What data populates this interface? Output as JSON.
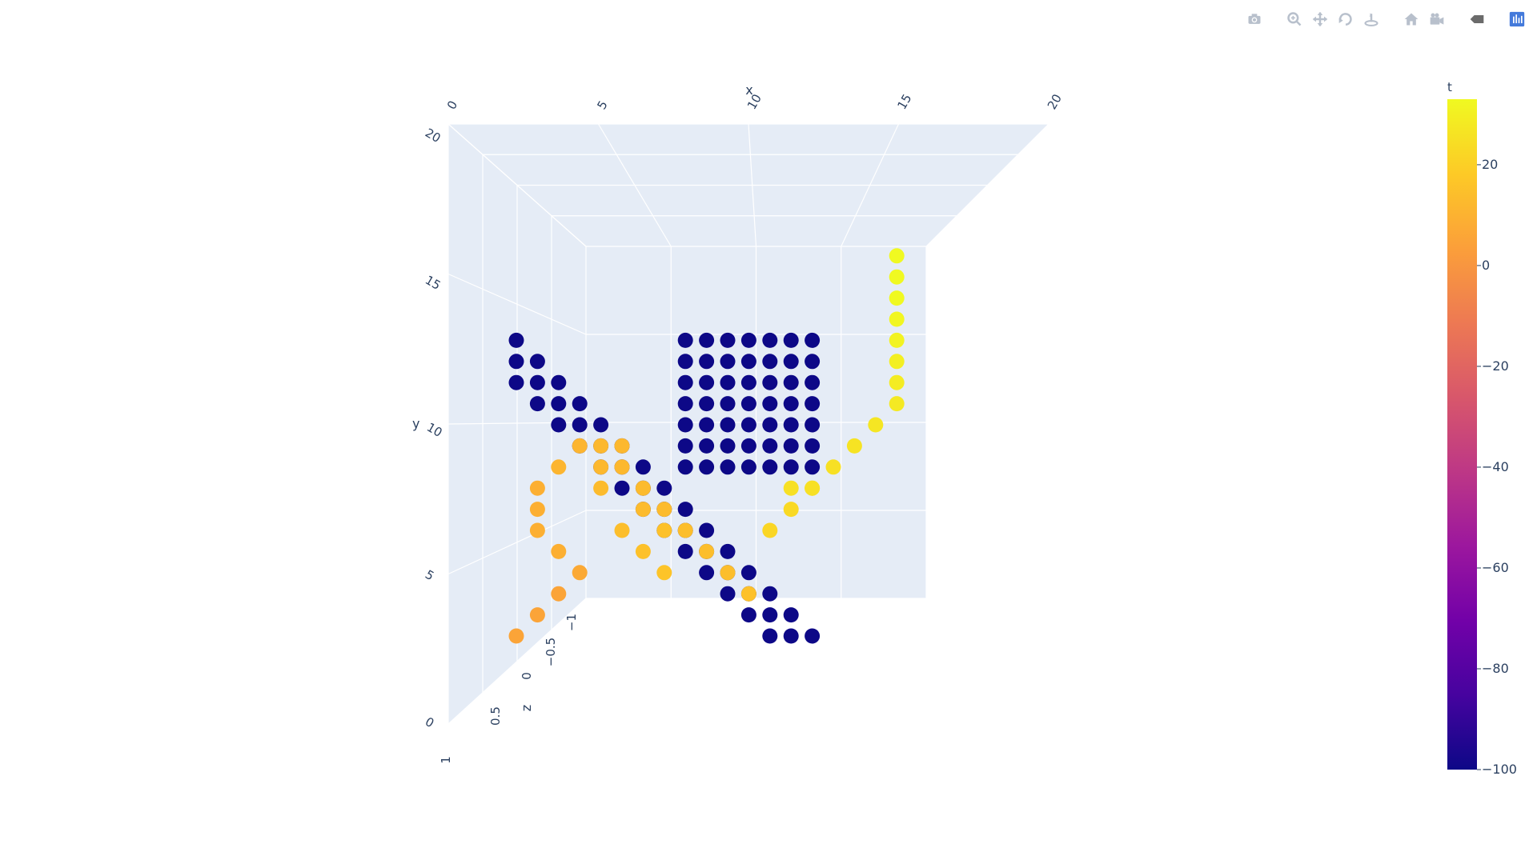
{
  "toolbar": {
    "buttons": [
      {
        "name": "download-plot-icon",
        "title": "Download plot as a png"
      },
      {
        "name": "zoom-icon",
        "title": "Zoom"
      },
      {
        "name": "pan-icon",
        "title": "Pan"
      },
      {
        "name": "orbital-rotation-icon",
        "title": "Orbital rotation"
      },
      {
        "name": "turntable-rotation-icon",
        "title": "Turntable rotation"
      },
      {
        "name": "reset-camera-default-icon",
        "title": "Reset camera to default"
      },
      {
        "name": "reset-camera-last-save-icon",
        "title": "Reset camera to last save"
      },
      {
        "name": "toggle-hover-icon",
        "title": "Toggle show closest data on hover"
      },
      {
        "name": "plotly-logo-icon",
        "title": "Produced with Plotly"
      }
    ]
  },
  "chart_data": {
    "type": "scatter",
    "mode": "3d-markers",
    "xlabel": "x",
    "ylabel": "y",
    "zlabel": "z",
    "xlim": [
      0,
      20
    ],
    "ylim": [
      0,
      20
    ],
    "zlim": [
      -1,
      1
    ],
    "x_ticks": [
      "0",
      "5",
      "10",
      "15",
      "20"
    ],
    "y_ticks": [
      "0",
      "5",
      "10",
      "15",
      "20"
    ],
    "z_ticks": [
      "−1",
      "−0.5",
      "0",
      "0.5",
      "1"
    ],
    "grid": true,
    "colorbar": {
      "title": "t",
      "range": [
        -100,
        33
      ],
      "ticks": [
        "20",
        "0",
        "−20",
        "−40",
        "−60",
        "−80",
        "−100"
      ],
      "tick_values": [
        20,
        0,
        -20,
        -40,
        -60,
        -80,
        -100
      ],
      "colorscale": [
        "#0d0887",
        "#46039f",
        "#7201a8",
        "#9c179e",
        "#bd3786",
        "#d8576b",
        "#ed7953",
        "#fb9f3a",
        "#fdca26",
        "#f0f921"
      ]
    },
    "series": [
      {
        "x": [
          3,
          3,
          4,
          3,
          4,
          5,
          4,
          5,
          6,
          5,
          6,
          7,
          6,
          7,
          8,
          7,
          8,
          9,
          8,
          9,
          10,
          9,
          10,
          11,
          10,
          11,
          12,
          11,
          12,
          13,
          12,
          13,
          14,
          13,
          14,
          15,
          14,
          15,
          16,
          15,
          16,
          17
        ],
        "y": [
          14,
          13,
          13,
          12,
          12,
          12,
          11,
          11,
          11,
          10,
          10,
          10,
          9,
          9,
          9,
          8,
          8,
          8,
          7,
          7,
          7,
          6,
          6,
          6,
          5,
          5,
          5,
          4,
          4,
          4,
          3,
          3,
          3,
          2,
          2,
          2,
          1,
          1,
          1,
          0,
          0,
          0
        ],
        "z": [
          0,
          0,
          0,
          0,
          0,
          0,
          0,
          0,
          0,
          0,
          0,
          0,
          0,
          0,
          0,
          0,
          0,
          0,
          0,
          0,
          0,
          0,
          0,
          0,
          0,
          0,
          0,
          0,
          0,
          0,
          0,
          0,
          0,
          0,
          0,
          0,
          0,
          0,
          0,
          0,
          0,
          0
        ],
        "t": [
          -100,
          -100,
          -100,
          -100,
          -100,
          -100,
          -100,
          -100,
          -100,
          -100,
          -100,
          -100,
          -100,
          -100,
          -100,
          -100,
          -100,
          -100,
          -100,
          -100,
          -100,
          -100,
          -100,
          -100,
          -100,
          -100,
          -100,
          -100,
          -100,
          -100,
          -100,
          -100,
          -100,
          -100,
          -100,
          -100,
          -100,
          -100,
          -100,
          -100,
          -100,
          -100
        ]
      },
      {
        "x": [
          11,
          12,
          13,
          14,
          15,
          16,
          17,
          11,
          12,
          13,
          14,
          15,
          16,
          17,
          11,
          12,
          13,
          14,
          15,
          16,
          17,
          11,
          12,
          13,
          14,
          15,
          16,
          17,
          11,
          12,
          13,
          14,
          15,
          16,
          17,
          11,
          12,
          13,
          14,
          15,
          16,
          17,
          11,
          12,
          13,
          14,
          15,
          16,
          17
        ],
        "y": [
          14,
          14,
          14,
          14,
          14,
          14,
          14,
          13,
          13,
          13,
          13,
          13,
          13,
          13,
          12,
          12,
          12,
          12,
          12,
          12,
          12,
          11,
          11,
          11,
          11,
          11,
          11,
          11,
          10,
          10,
          10,
          10,
          10,
          10,
          10,
          9,
          9,
          9,
          9,
          9,
          9,
          9,
          8,
          8,
          8,
          8,
          8,
          8,
          8
        ],
        "z": [
          0,
          0,
          0,
          0,
          0,
          0,
          0,
          0,
          0,
          0,
          0,
          0,
          0,
          0,
          0,
          0,
          0,
          0,
          0,
          0,
          0,
          0,
          0,
          0,
          0,
          0,
          0,
          0,
          0,
          0,
          0,
          0,
          0,
          0,
          0,
          0,
          0,
          0,
          0,
          0,
          0,
          0,
          0,
          0,
          0,
          0,
          0,
          0,
          0
        ],
        "t": [
          -100,
          -100,
          -100,
          -100,
          -100,
          -100,
          -100,
          -100,
          -100,
          -100,
          -100,
          -100,
          -100,
          -100,
          -100,
          -100,
          -100,
          -100,
          -100,
          -100,
          -100,
          -100,
          -100,
          -100,
          -100,
          -100,
          -100,
          -100,
          -100,
          -100,
          -100,
          -100,
          -100,
          -100,
          -100,
          -100,
          -100,
          -100,
          -100,
          -100,
          -100,
          -100,
          -100,
          -100,
          -100,
          -100,
          -100,
          -100,
          -100
        ]
      },
      {
        "x": [
          3,
          4,
          5,
          6,
          5,
          4,
          4,
          4,
          5,
          6,
          7,
          8,
          9,
          10,
          11,
          12,
          13,
          14,
          15,
          16,
          17,
          18,
          19,
          20,
          21,
          21,
          21,
          21,
          21,
          21,
          21,
          21,
          7,
          8,
          7,
          9,
          8,
          10,
          9,
          10,
          16,
          17
        ],
        "y": [
          0,
          1,
          2,
          3,
          4,
          5,
          6,
          7,
          8,
          9,
          9,
          8,
          7,
          6,
          5,
          4,
          3,
          2,
          5,
          6,
          7,
          8,
          9,
          10,
          11,
          12,
          13,
          14,
          15,
          16,
          17,
          18,
          8,
          9,
          7,
          6,
          5,
          5,
          4,
          3,
          7,
          7
        ],
        "z": [
          0,
          0,
          0,
          0,
          0,
          0,
          0,
          0,
          0,
          0,
          0,
          0,
          0,
          0,
          0,
          0,
          0,
          0,
          0,
          0,
          0,
          0,
          0,
          0,
          0,
          0,
          0,
          0,
          0,
          0,
          0,
          0,
          0,
          0,
          0,
          0,
          0,
          0,
          0,
          0,
          0,
          0
        ],
        "t": [
          5,
          5,
          5,
          7,
          9,
          9,
          9,
          9,
          11,
          11,
          12,
          12,
          13,
          13,
          14,
          14,
          14,
          15,
          22,
          23,
          24,
          25,
          26,
          27,
          28,
          29,
          30,
          31,
          32,
          33,
          33,
          33,
          12,
          12,
          13,
          13,
          14,
          15,
          15,
          16,
          25,
          25
        ]
      }
    ]
  }
}
